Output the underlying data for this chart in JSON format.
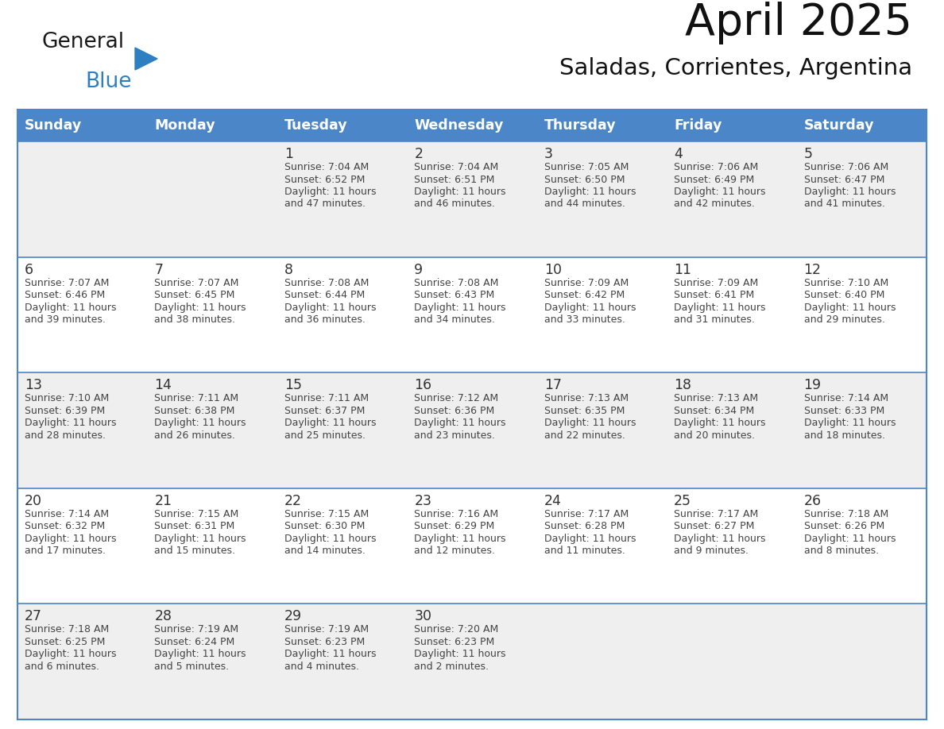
{
  "title": "April 2025",
  "subtitle": "Saladas, Corrientes, Argentina",
  "days_of_week": [
    "Sunday",
    "Monday",
    "Tuesday",
    "Wednesday",
    "Thursday",
    "Friday",
    "Saturday"
  ],
  "header_bg": "#4A86C8",
  "header_text_color": "#FFFFFF",
  "cell_bg_odd": "#EFEFEF",
  "cell_bg_even": "#FFFFFF",
  "text_color": "#444444",
  "day_num_color": "#333333",
  "border_color": "#4A86C8",
  "line_color": "#4A86C8",
  "logo_general_color": "#1a1a1a",
  "logo_blue_color": "#2E7EC2",
  "calendar_data": [
    [
      null,
      null,
      {
        "day": 1,
        "sunrise": "7:04 AM",
        "sunset": "6:52 PM",
        "daylight": "11 hours and 47 minutes."
      },
      {
        "day": 2,
        "sunrise": "7:04 AM",
        "sunset": "6:51 PM",
        "daylight": "11 hours and 46 minutes."
      },
      {
        "day": 3,
        "sunrise": "7:05 AM",
        "sunset": "6:50 PM",
        "daylight": "11 hours and 44 minutes."
      },
      {
        "day": 4,
        "sunrise": "7:06 AM",
        "sunset": "6:49 PM",
        "daylight": "11 hours and 42 minutes."
      },
      {
        "day": 5,
        "sunrise": "7:06 AM",
        "sunset": "6:47 PM",
        "daylight": "11 hours and 41 minutes."
      }
    ],
    [
      {
        "day": 6,
        "sunrise": "7:07 AM",
        "sunset": "6:46 PM",
        "daylight": "11 hours and 39 minutes."
      },
      {
        "day": 7,
        "sunrise": "7:07 AM",
        "sunset": "6:45 PM",
        "daylight": "11 hours and 38 minutes."
      },
      {
        "day": 8,
        "sunrise": "7:08 AM",
        "sunset": "6:44 PM",
        "daylight": "11 hours and 36 minutes."
      },
      {
        "day": 9,
        "sunrise": "7:08 AM",
        "sunset": "6:43 PM",
        "daylight": "11 hours and 34 minutes."
      },
      {
        "day": 10,
        "sunrise": "7:09 AM",
        "sunset": "6:42 PM",
        "daylight": "11 hours and 33 minutes."
      },
      {
        "day": 11,
        "sunrise": "7:09 AM",
        "sunset": "6:41 PM",
        "daylight": "11 hours and 31 minutes."
      },
      {
        "day": 12,
        "sunrise": "7:10 AM",
        "sunset": "6:40 PM",
        "daylight": "11 hours and 29 minutes."
      }
    ],
    [
      {
        "day": 13,
        "sunrise": "7:10 AM",
        "sunset": "6:39 PM",
        "daylight": "11 hours and 28 minutes."
      },
      {
        "day": 14,
        "sunrise": "7:11 AM",
        "sunset": "6:38 PM",
        "daylight": "11 hours and 26 minutes."
      },
      {
        "day": 15,
        "sunrise": "7:11 AM",
        "sunset": "6:37 PM",
        "daylight": "11 hours and 25 minutes."
      },
      {
        "day": 16,
        "sunrise": "7:12 AM",
        "sunset": "6:36 PM",
        "daylight": "11 hours and 23 minutes."
      },
      {
        "day": 17,
        "sunrise": "7:13 AM",
        "sunset": "6:35 PM",
        "daylight": "11 hours and 22 minutes."
      },
      {
        "day": 18,
        "sunrise": "7:13 AM",
        "sunset": "6:34 PM",
        "daylight": "11 hours and 20 minutes."
      },
      {
        "day": 19,
        "sunrise": "7:14 AM",
        "sunset": "6:33 PM",
        "daylight": "11 hours and 18 minutes."
      }
    ],
    [
      {
        "day": 20,
        "sunrise": "7:14 AM",
        "sunset": "6:32 PM",
        "daylight": "11 hours and 17 minutes."
      },
      {
        "day": 21,
        "sunrise": "7:15 AM",
        "sunset": "6:31 PM",
        "daylight": "11 hours and 15 minutes."
      },
      {
        "day": 22,
        "sunrise": "7:15 AM",
        "sunset": "6:30 PM",
        "daylight": "11 hours and 14 minutes."
      },
      {
        "day": 23,
        "sunrise": "7:16 AM",
        "sunset": "6:29 PM",
        "daylight": "11 hours and 12 minutes."
      },
      {
        "day": 24,
        "sunrise": "7:17 AM",
        "sunset": "6:28 PM",
        "daylight": "11 hours and 11 minutes."
      },
      {
        "day": 25,
        "sunrise": "7:17 AM",
        "sunset": "6:27 PM",
        "daylight": "11 hours and 9 minutes."
      },
      {
        "day": 26,
        "sunrise": "7:18 AM",
        "sunset": "6:26 PM",
        "daylight": "11 hours and 8 minutes."
      }
    ],
    [
      {
        "day": 27,
        "sunrise": "7:18 AM",
        "sunset": "6:25 PM",
        "daylight": "11 hours and 6 minutes."
      },
      {
        "day": 28,
        "sunrise": "7:19 AM",
        "sunset": "6:24 PM",
        "daylight": "11 hours and 5 minutes."
      },
      {
        "day": 29,
        "sunrise": "7:19 AM",
        "sunset": "6:23 PM",
        "daylight": "11 hours and 4 minutes."
      },
      {
        "day": 30,
        "sunrise": "7:20 AM",
        "sunset": "6:23 PM",
        "daylight": "11 hours and 2 minutes."
      },
      null,
      null,
      null
    ]
  ]
}
